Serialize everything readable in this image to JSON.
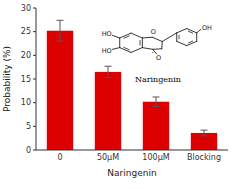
{
  "chart_data": {
    "type": "bar",
    "categories": [
      "0",
      "50μM",
      "100μM",
      "Blocking"
    ],
    "values": [
      25.2,
      16.5,
      10.2,
      3.6
    ],
    "errors": [
      2.2,
      1.2,
      1.0,
      0.6
    ],
    "color": "#dd0000",
    "x_label": "Naringenin",
    "y_label": "Probability (%)",
    "ylim": [
      0,
      30
    ],
    "yticks": [
      0,
      5,
      10,
      15,
      20,
      25,
      30
    ],
    "grid": false,
    "annotations": [
      "O",
      "O",
      "HO",
      "HO",
      "OH",
      "Naringenin"
    ]
  }
}
